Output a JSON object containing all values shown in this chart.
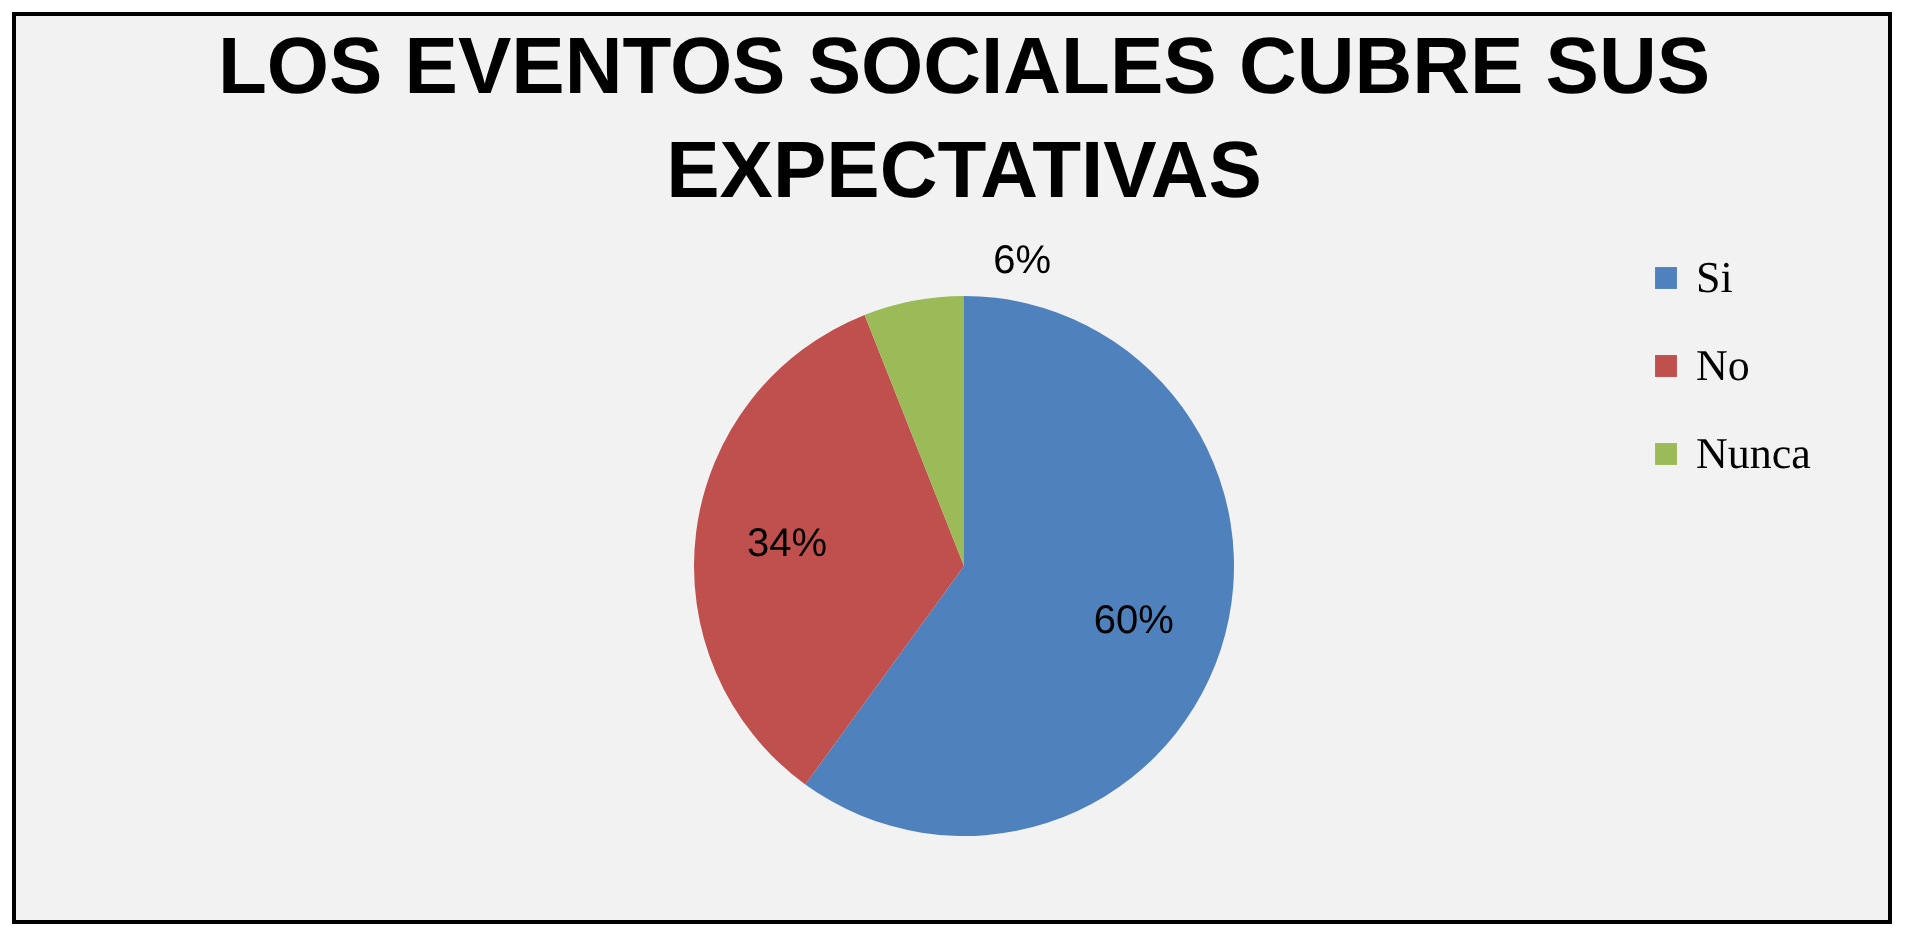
{
  "chart_data": {
    "type": "pie",
    "title": [
      "LOS EVENTOS SOCIALES CUBRE SUS",
      "EXPECTATIVAS"
    ],
    "categories": [
      "Si",
      "No",
      "Nunca"
    ],
    "values": [
      60,
      34,
      6
    ],
    "colors": [
      "#4f81bd",
      "#c0504d",
      "#9bbb59"
    ],
    "value_labels": [
      "60%",
      "34%",
      "6%"
    ],
    "legend": "right"
  }
}
